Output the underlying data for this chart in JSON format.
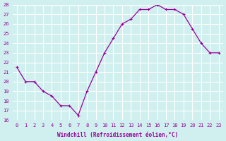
{
  "x": [
    0,
    1,
    2,
    3,
    4,
    5,
    6,
    7,
    8,
    9,
    10,
    11,
    12,
    13,
    14,
    15,
    16,
    17,
    18,
    19,
    20,
    21,
    22,
    23
  ],
  "y": [
    21.5,
    20.0,
    20.0,
    19.0,
    18.5,
    17.5,
    17.5,
    16.5,
    19.0,
    21.0,
    23.0,
    24.5,
    26.0,
    26.5,
    27.5,
    27.5,
    28.0,
    27.5,
    27.5,
    27.0,
    25.5,
    24.0,
    23.0,
    23.0
  ],
  "line_color": "#990099",
  "marker": "P",
  "bg_color": "#d0f0f0",
  "grid_color": "#ffffff",
  "xlabel": "Windchill (Refroidissement éolien,°C)",
  "ylim": [
    16,
    28
  ],
  "xlim": [
    -0.5,
    23.5
  ],
  "yticks": [
    16,
    17,
    18,
    19,
    20,
    21,
    22,
    23,
    24,
    25,
    26,
    27,
    28
  ],
  "xticks": [
    0,
    1,
    2,
    3,
    4,
    5,
    6,
    7,
    8,
    9,
    10,
    11,
    12,
    13,
    14,
    15,
    16,
    17,
    18,
    19,
    20,
    21,
    22,
    23
  ],
  "tick_color": "#990099",
  "label_color": "#990099"
}
